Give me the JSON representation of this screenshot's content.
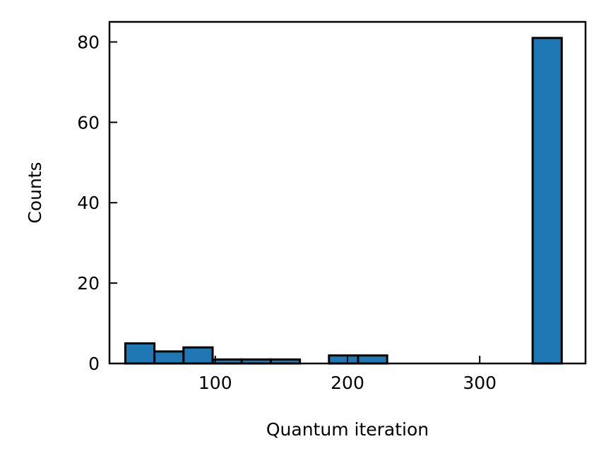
{
  "chart_data": {
    "type": "bar",
    "title": "",
    "xlabel": "Quantum iteration",
    "ylabel": "Counts",
    "xlim": [
      20,
      380
    ],
    "ylim": [
      0,
      85
    ],
    "xticks": [
      100,
      200,
      300
    ],
    "yticks": [
      0,
      20,
      40,
      60,
      80
    ],
    "bar_color": "#1f77b4",
    "edge_color": "#000000",
    "grid": false,
    "bins": [
      {
        "x0": 32,
        "x1": 54,
        "count": 5
      },
      {
        "x0": 54,
        "x1": 76,
        "count": 3
      },
      {
        "x0": 76,
        "x1": 98,
        "count": 4
      },
      {
        "x0": 98,
        "x1": 120,
        "count": 1
      },
      {
        "x0": 120,
        "x1": 142,
        "count": 1
      },
      {
        "x0": 142,
        "x1": 164,
        "count": 1
      },
      {
        "x0": 164,
        "x1": 186,
        "count": 0
      },
      {
        "x0": 186,
        "x1": 208,
        "count": 2
      },
      {
        "x0": 208,
        "x1": 230,
        "count": 2
      },
      {
        "x0": 230,
        "x1": 252,
        "count": 0
      },
      {
        "x0": 252,
        "x1": 274,
        "count": 0
      },
      {
        "x0": 274,
        "x1": 296,
        "count": 0
      },
      {
        "x0": 296,
        "x1": 318,
        "count": 0
      },
      {
        "x0": 318,
        "x1": 340,
        "count": 0
      },
      {
        "x0": 340,
        "x1": 362,
        "count": 81
      }
    ]
  }
}
